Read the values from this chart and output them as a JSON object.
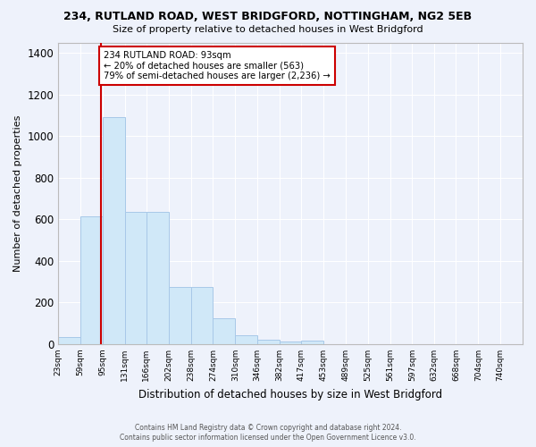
{
  "title": "234, RUTLAND ROAD, WEST BRIDGFORD, NOTTINGHAM, NG2 5EB",
  "subtitle": "Size of property relative to detached houses in West Bridgford",
  "xlabel": "Distribution of detached houses by size in West Bridgford",
  "ylabel": "Number of detached properties",
  "footer_line1": "Contains HM Land Registry data © Crown copyright and database right 2024.",
  "footer_line2": "Contains public sector information licensed under the Open Government Licence v3.0.",
  "property_label": "234 RUTLAND ROAD: 93sqm",
  "annotation_line1": "← 20% of detached houses are smaller (563)",
  "annotation_line2": "79% of semi-detached houses are larger (2,236) →",
  "property_size_sqm": 93,
  "bar_color": "#d0e8f8",
  "bar_edge_color": "#a8c8e8",
  "vline_color": "#cc0000",
  "background_color": "#eef2fb",
  "grid_color": "#ffffff",
  "tick_labels": [
    "23sqm",
    "59sqm",
    "95sqm",
    "131sqm",
    "166sqm",
    "202sqm",
    "238sqm",
    "274sqm",
    "310sqm",
    "346sqm",
    "382sqm",
    "417sqm",
    "453sqm",
    "489sqm",
    "525sqm",
    "561sqm",
    "597sqm",
    "632sqm",
    "668sqm",
    "704sqm",
    "740sqm"
  ],
  "bin_edges": [
    23,
    59,
    95,
    131,
    166,
    202,
    238,
    274,
    310,
    346,
    382,
    417,
    453,
    489,
    525,
    561,
    597,
    632,
    668,
    704,
    740,
    776
  ],
  "bar_heights": [
    32,
    615,
    1090,
    635,
    635,
    275,
    275,
    125,
    42,
    22,
    14,
    18,
    0,
    0,
    0,
    0,
    0,
    0,
    0,
    0,
    0
  ],
  "ylim": [
    0,
    1450
  ],
  "yticks": [
    0,
    200,
    400,
    600,
    800,
    1000,
    1200,
    1400
  ]
}
